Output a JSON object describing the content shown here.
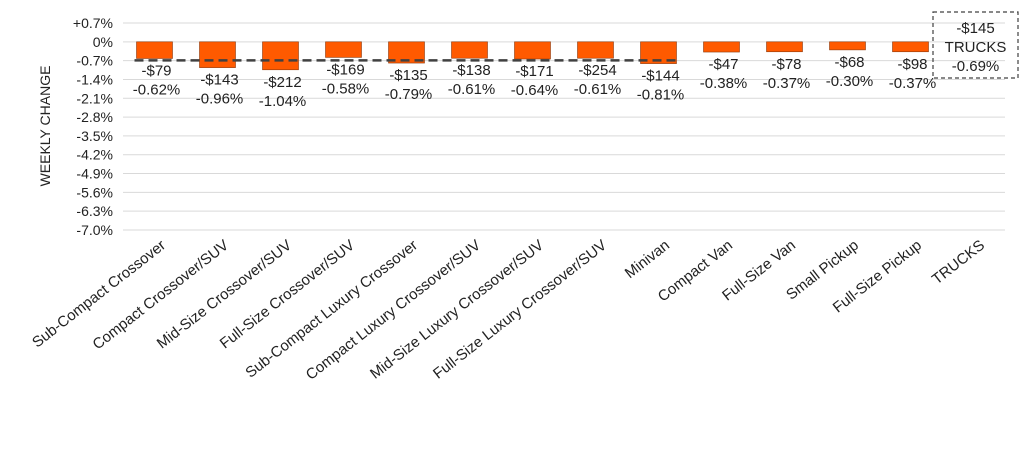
{
  "chart_data": {
    "type": "bar",
    "ylabel": "WEEKLY CHANGE",
    "ylim": [
      -7.0,
      0.7
    ],
    "y_ticks": [
      "+0.7%",
      "0%",
      "-0.7%",
      "-1.4%",
      "-2.1%",
      "-2.8%",
      "-3.5%",
      "-4.2%",
      "-4.9%",
      "-5.6%",
      "-6.3%",
      "-7.0%"
    ],
    "grid": true,
    "bar_color": "#FF5A00",
    "categories": [
      "Sub-Compact Crossover",
      "Compact Crossover/SUV",
      "Mid-Size Crossover/SUV",
      "Full-Size Crossover/SUV",
      "Sub-Compact Luxury Crossover",
      "Compact Luxury Crossover/SUV",
      "Mid-Size Luxury Crossover/SUV",
      "Full-Size Luxury Crossover/SUV",
      "Minivan",
      "Compact Van",
      "Full-Size Van",
      "Small Pickup",
      "Full-Size Pickup",
      "TRUCKS"
    ],
    "values": [
      -0.62,
      -0.96,
      -1.04,
      -0.58,
      -0.79,
      -0.61,
      -0.64,
      -0.61,
      -0.81,
      -0.38,
      -0.37,
      -0.3,
      -0.37,
      null
    ],
    "dollar_labels": [
      "-$79",
      "-$143",
      "-$212",
      "-$169",
      "-$135",
      "-$138",
      "-$171",
      "-$254",
      "-$144",
      "-$47",
      "-$78",
      "-$68",
      "-$98",
      null
    ],
    "percent_labels": [
      "-0.62%",
      "-0.96%",
      "-1.04%",
      "-0.58%",
      "-0.79%",
      "-0.61%",
      "-0.64%",
      "-0.61%",
      "-0.81%",
      "-0.38%",
      "-0.37%",
      "-0.30%",
      "-0.37%",
      null
    ],
    "reference_line": {
      "value": -0.69,
      "style": "dashed",
      "color": "#404040",
      "spans_categories": [
        0,
        8
      ]
    },
    "summary_box": {
      "dollar": "-$145",
      "label": "TRUCKS",
      "percent": "-0.69%"
    }
  }
}
